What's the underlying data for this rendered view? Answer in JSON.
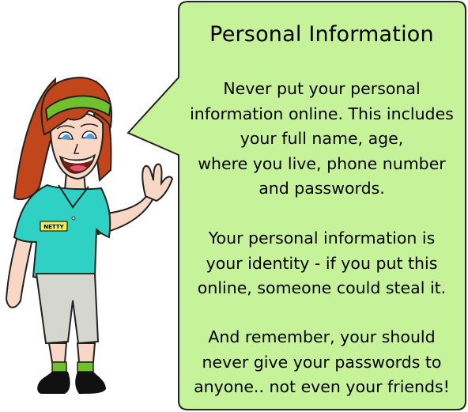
{
  "title": "Personal Information",
  "paragraphs": [
    "Never put your personal\ninformation online. This includes\nyour full name, age,\nwhere you live, phone number\nand passwords.",
    "Your personal information is\nyour identity - if you put this\nonline, someone could steal it.",
    "And remember, your should\nnever give your passwords to\nanyone.. not even your friends!"
  ],
  "badge": "NETTY",
  "colors": {
    "bubble_fill": "#c6f29a",
    "bubble_stroke": "#222222",
    "shirt": "#2fd1c4",
    "hair": "#c2461c",
    "headband": "#6fc02a",
    "skin": "#f8d8c4",
    "shorts": "#d6d6d0",
    "badge": "#f4ec4a",
    "shoes": "#111111"
  }
}
